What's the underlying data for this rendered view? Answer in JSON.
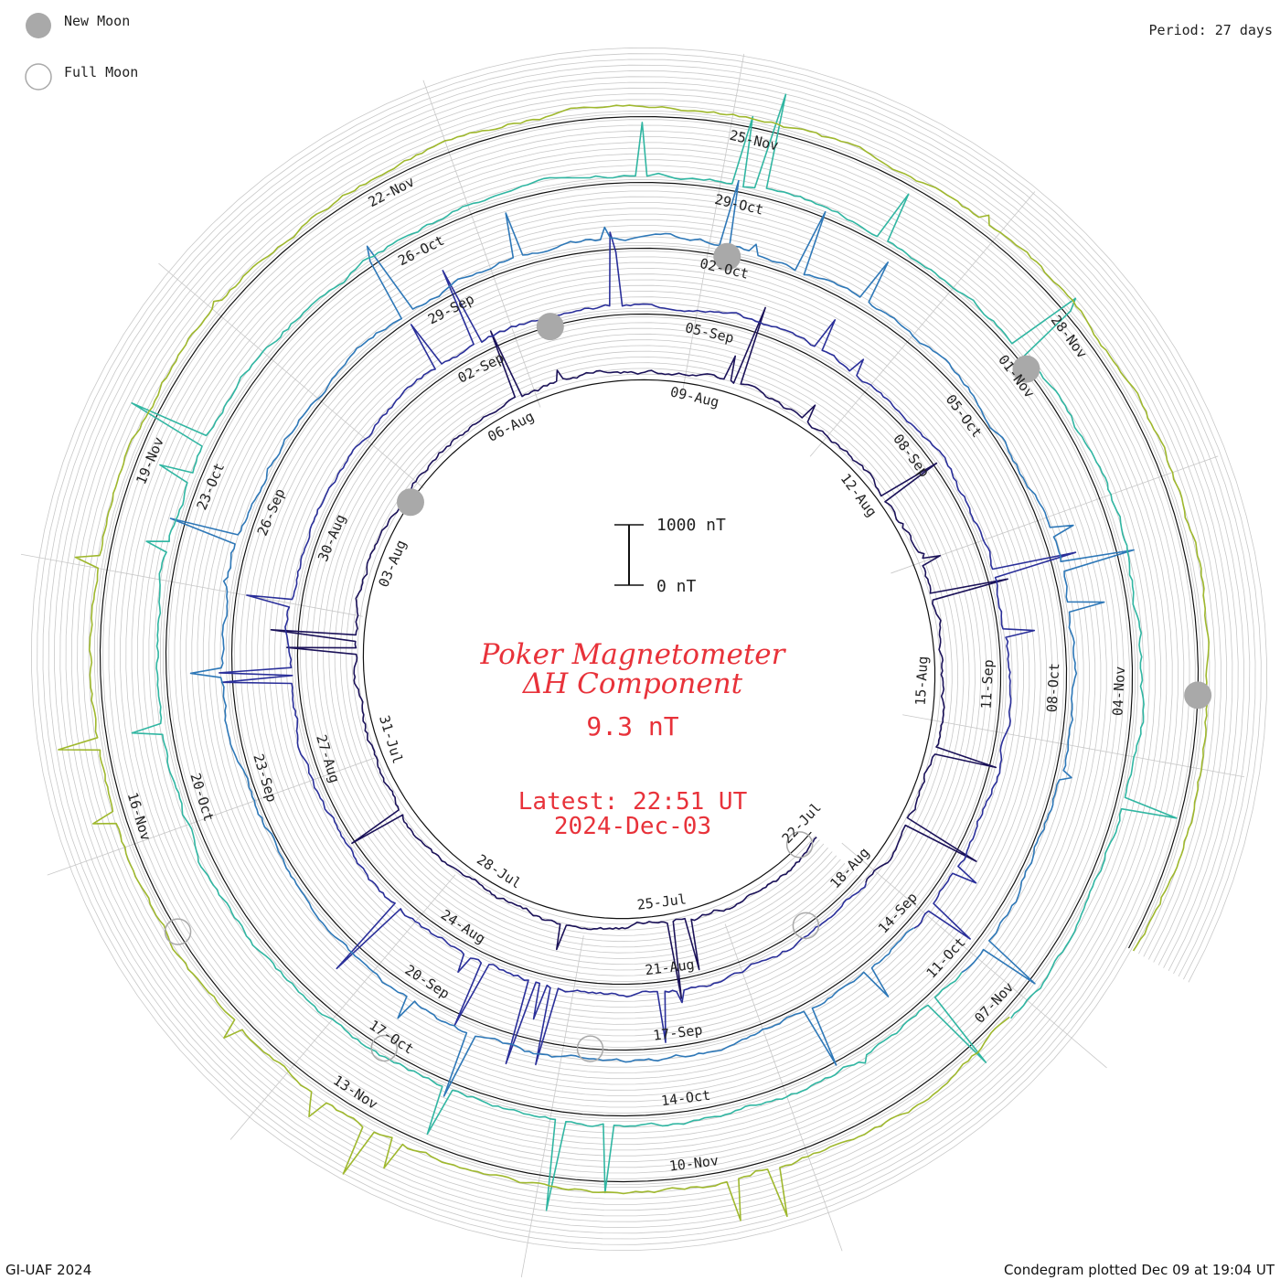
{
  "legend": {
    "new_moon": "New Moon",
    "full_moon": "Full Moon"
  },
  "period_label": "Period: 27 days",
  "credit": "GI-UAF 2024",
  "plotted": "Condegram plotted Dec 09 at 19:04 UT",
  "colors": {
    "title": "#e8323a",
    "ring": "#111111",
    "grid": "#c8c8c8",
    "moon_new": "#a9a9a9",
    "moon_full": "#a9a9a9"
  },
  "chart_data": {
    "type": "line",
    "title": "Poker Magnetometer",
    "subtitle": "ΔH Component",
    "current_value": "9.3 nT",
    "latest_time": "Latest: 22:51 UT",
    "latest_date": "2024-Dec-03",
    "period_days": 27,
    "scale_bar": {
      "top": "1000 nT",
      "bottom": "0 nT"
    },
    "series": [
      {
        "start": "2024-07-22",
        "end": "2024-08-18",
        "color": "#1b1259",
        "quiet_level_nT": 150,
        "peak_nT": 1400
      },
      {
        "start": "2024-08-18",
        "end": "2024-09-14",
        "color": "#2a2f9a",
        "quiet_level_nT": 150,
        "peak_nT": 1500
      },
      {
        "start": "2024-09-14",
        "end": "2024-10-11",
        "color": "#2e78b8",
        "quiet_level_nT": 150,
        "peak_nT": 1300
      },
      {
        "start": "2024-10-11",
        "end": "2024-11-07",
        "color": "#30b6a2",
        "quiet_level_nT": 150,
        "peak_nT": 1600
      },
      {
        "start": "2024-11-07",
        "end": "2024-12-03",
        "color": "#9fb82d",
        "quiet_level_nT": 150,
        "peak_nT": 900
      }
    ],
    "date_labels": [
      "22-Jul",
      "25-Jul",
      "28-Jul",
      "31-Jul",
      "03-Aug",
      "06-Aug",
      "09-Aug",
      "12-Aug",
      "15-Aug",
      "18-Aug",
      "21-Aug",
      "24-Aug",
      "27-Aug",
      "30-Aug",
      "02-Sep",
      "05-Sep",
      "08-Sep",
      "11-Sep",
      "14-Sep",
      "17-Sep",
      "20-Sep",
      "23-Sep",
      "26-Sep",
      "29-Sep",
      "02-Oct",
      "05-Oct",
      "08-Oct",
      "11-Oct",
      "14-Oct",
      "17-Oct",
      "20-Oct",
      "23-Oct",
      "26-Oct",
      "29-Oct",
      "01-Nov",
      "04-Nov",
      "07-Nov",
      "10-Nov",
      "13-Nov",
      "16-Nov",
      "19-Nov",
      "22-Nov",
      "25-Nov",
      "28-Nov"
    ],
    "new_moons": [
      "2024-08-04",
      "2024-09-03",
      "2024-10-02",
      "2024-11-01",
      "2024-12-01"
    ],
    "full_moons": [
      "2024-07-21",
      "2024-08-19",
      "2024-09-18",
      "2024-10-17",
      "2024-11-15"
    ]
  }
}
